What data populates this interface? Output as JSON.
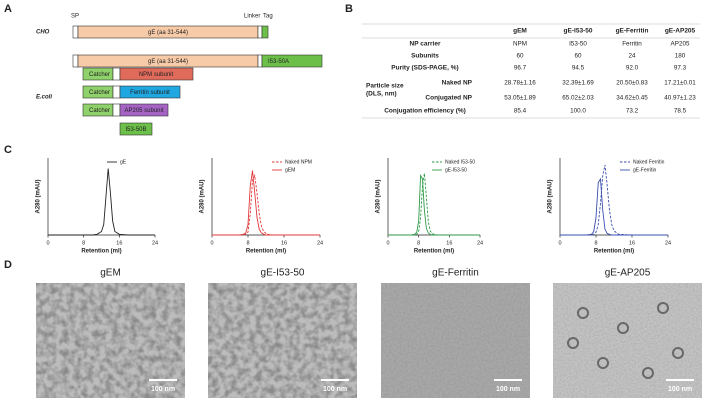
{
  "panel_labels": [
    "A",
    "B",
    "C",
    "D"
  ],
  "panel_a": {
    "host_cho": "CHO",
    "host_ecoli": "E.coli",
    "markers": [
      "SP",
      "Linker",
      "Tag"
    ],
    "rows": [
      [
        "gE (aa 31-544)"
      ],
      [
        "gE (aa 31-544)",
        "I53-50A"
      ],
      [
        "Catcher",
        "NPM subunit"
      ],
      [
        "Catcher",
        "Ferritin subunit"
      ],
      [
        "Catcher",
        "AP205 subunit"
      ],
      [
        "I53-50B"
      ]
    ]
  },
  "panel_b": {
    "header": [
      "gEM",
      "gE-I53-50",
      "gE-Ferritin",
      "gE-AP205"
    ],
    "rows": [
      {
        "label": "NP carrier",
        "cells": [
          "NPM",
          "I53-50",
          "Ferritin",
          "AP205"
        ]
      },
      {
        "label": "Subunits",
        "cells": [
          "60",
          "60",
          "24",
          "180"
        ]
      },
      {
        "label": "Purity (SDS-PAGE, %)",
        "cells": [
          "96.7",
          "94.5",
          "92.0",
          "97.3"
        ]
      },
      {
        "group": [
          "Particle size",
          "(DLS, nm)"
        ],
        "label": "Naked NP",
        "cells": [
          "28.78±1.16",
          "32.39±1.69",
          "20.50±0.83",
          "17.21±0.01"
        ]
      },
      {
        "label": "Conjugated NP",
        "cells": [
          "53.05±1.89",
          "65.02±2.03",
          "34.62±0.45",
          "40.97±1.23"
        ]
      },
      {
        "label": "Conjugation efficiency (%)",
        "cells": [
          "85.4",
          "100.0",
          "73.2",
          "78.5"
        ]
      }
    ]
  },
  "chart_data": [
    {
      "type": "line",
      "x_label": "Retention (ml)",
      "y_label": "A280 (mAU)",
      "xlim": [
        0,
        24
      ],
      "xticks": [
        0,
        8,
        16,
        24
      ],
      "ylim": [
        0,
        110
      ],
      "legend": "upper right",
      "x": [
        0,
        10,
        11,
        12,
        12.5,
        13,
        13.5,
        14,
        14.5,
        15,
        16,
        18,
        24
      ],
      "series": [
        {
          "name": "gE",
          "color": "#222222",
          "style": "solid",
          "values": [
            0,
            0,
            1,
            5,
            15,
            55,
            95,
            60,
            20,
            5,
            1,
            0,
            0
          ]
        }
      ]
    },
    {
      "type": "line",
      "x_label": "Retention (ml)",
      "y_label": "A280 (mAU)",
      "xlim": [
        0,
        24
      ],
      "xticks": [
        0,
        8,
        16,
        24
      ],
      "ylim": [
        0,
        110
      ],
      "legend": "upper right",
      "x": [
        0,
        6,
        7,
        7.5,
        8,
        8.5,
        9,
        9.5,
        10,
        10.5,
        11,
        11.5,
        12,
        13,
        16,
        24
      ],
      "series": [
        {
          "name": "Naked NPM",
          "color": "#e0393b",
          "style": "dashed",
          "values": [
            0,
            0,
            0,
            1,
            4,
            30,
            78,
            85,
            60,
            30,
            12,
            5,
            2,
            0,
            0,
            0
          ]
        },
        {
          "name": "gEM",
          "color": "#e0393b",
          "style": "solid",
          "values": [
            0,
            0,
            1,
            3,
            15,
            70,
            92,
            60,
            25,
            8,
            3,
            1,
            0,
            0,
            0,
            0
          ]
        }
      ]
    },
    {
      "type": "line",
      "x_label": "Retention (ml)",
      "y_label": "A280 (mAU)",
      "xlim": [
        0,
        24
      ],
      "xticks": [
        0,
        8,
        16,
        24
      ],
      "ylim": [
        0,
        110
      ],
      "legend": "upper right",
      "x": [
        0,
        6,
        7,
        7.5,
        8,
        8.5,
        9,
        9.5,
        10,
        10.5,
        11,
        11.5,
        12,
        13,
        16,
        24
      ],
      "series": [
        {
          "name": "Naked I53-50",
          "color": "#2e9a48",
          "style": "dashed",
          "values": [
            0,
            0,
            0,
            1,
            5,
            25,
            70,
            88,
            55,
            20,
            6,
            2,
            1,
            0,
            0,
            0
          ]
        },
        {
          "name": "gE-I53-50",
          "color": "#2e9a48",
          "style": "solid",
          "values": [
            0,
            0,
            1,
            4,
            20,
            85,
            80,
            35,
            10,
            3,
            1,
            0,
            0,
            0,
            0,
            0
          ]
        }
      ]
    },
    {
      "type": "line",
      "x_label": "Retention (ml)",
      "y_label": "A280 (mAU)",
      "xlim": [
        0,
        24
      ],
      "xticks": [
        0,
        8,
        16,
        24
      ],
      "ylim": [
        0,
        110
      ],
      "legend": "upper right",
      "x": [
        0,
        6,
        7,
        7.5,
        8,
        8.5,
        9,
        9.5,
        10,
        10.5,
        11,
        11.5,
        12,
        13,
        16,
        24
      ],
      "series": [
        {
          "name": "Naked Ferritin",
          "color": "#3a4fb0",
          "style": "dashed",
          "values": [
            0,
            0,
            0,
            1,
            4,
            15,
            45,
            85,
            100,
            70,
            35,
            15,
            6,
            1,
            0,
            0
          ]
        },
        {
          "name": "gE-Ferritin",
          "color": "#3a4fb0",
          "style": "solid",
          "values": [
            0,
            0,
            1,
            5,
            25,
            75,
            80,
            35,
            8,
            2,
            1,
            0,
            0,
            0,
            0,
            0
          ]
        }
      ]
    }
  ],
  "panel_d": {
    "images": [
      {
        "title": "gEM",
        "scale": "100 nm"
      },
      {
        "title": "gE-I53-50",
        "scale": "100 nm"
      },
      {
        "title": "gE-Ferritin",
        "scale": "100 nm"
      },
      {
        "title": "gE-AP205",
        "scale": "100 nm"
      }
    ]
  }
}
